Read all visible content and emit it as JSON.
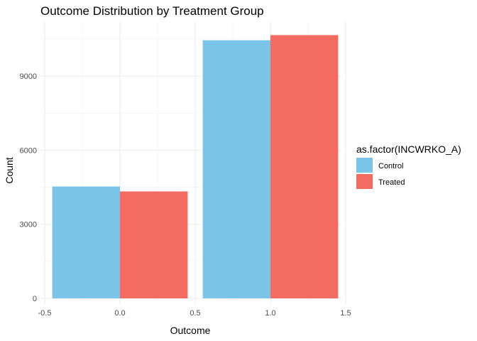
{
  "chart_data": {
    "type": "bar",
    "title": "Outcome Distribution by Treatment Group",
    "xlabel": "Outcome",
    "ylabel": "Count",
    "legend_title": "as.factor(INCWRKO_A)",
    "legend_position": "right",
    "grid": true,
    "xlim": [
      -0.5,
      1.5
    ],
    "ylim": [
      0,
      10700
    ],
    "x_ticks": [
      -0.5,
      0.0,
      0.5,
      1.0,
      1.5
    ],
    "x_tick_labels": [
      "-0.5",
      "0.0",
      "0.5",
      "1.0",
      "1.5"
    ],
    "y_ticks": [
      0,
      3000,
      6000,
      9000
    ],
    "y_tick_labels": [
      "0",
      "3000",
      "6000",
      "9000"
    ],
    "categories": [
      0,
      1
    ],
    "series": [
      {
        "name": "Control",
        "color": "#7AC5E7",
        "values": [
          4530,
          10450
        ]
      },
      {
        "name": "Treated",
        "color": "#F46B61",
        "values": [
          4330,
          10660
        ]
      }
    ]
  }
}
